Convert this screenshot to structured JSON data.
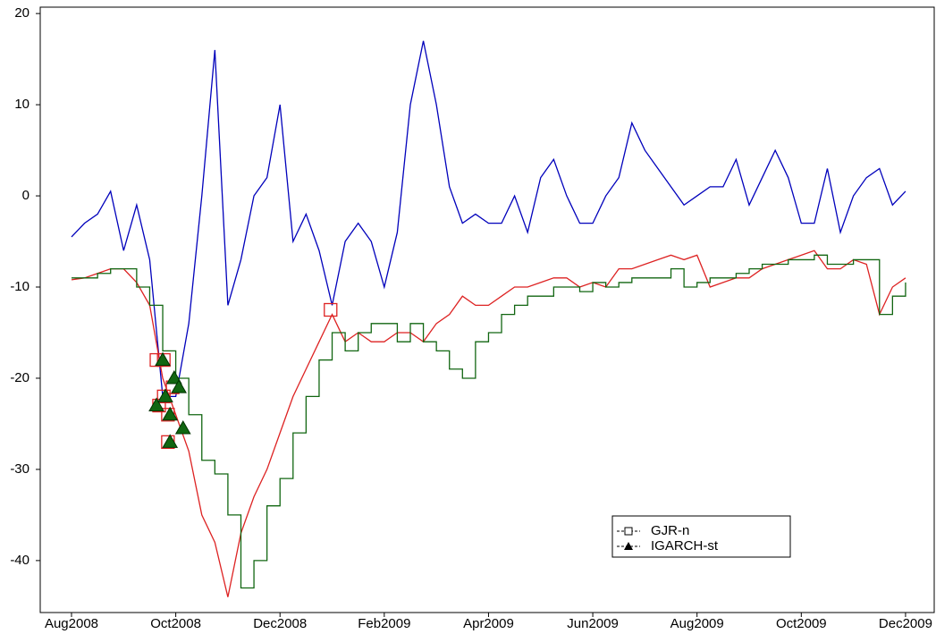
{
  "chart_data": {
    "type": "line",
    "x": [
      0,
      0.25,
      0.5,
      0.75,
      1,
      1.25,
      1.5,
      1.75,
      2,
      2.25,
      2.5,
      2.75,
      3,
      3.25,
      3.5,
      3.75,
      4,
      4.25,
      4.5,
      4.75,
      5,
      5.25,
      5.5,
      5.75,
      6,
      6.25,
      6.5,
      6.75,
      7,
      7.25,
      7.5,
      7.75,
      8,
      8.25,
      8.5,
      8.75,
      9,
      9.25,
      9.5,
      9.75,
      10,
      10.25,
      10.5,
      10.75,
      11,
      11.25,
      11.5,
      11.75,
      12,
      12.25,
      12.5,
      12.75,
      13,
      13.25,
      13.5,
      13.75,
      14,
      14.25,
      14.5,
      14.75,
      15,
      15.25,
      15.5,
      15.75,
      16
    ],
    "series": [
      {
        "color": "#0000bb",
        "values": [
          -4.5,
          -3,
          -2,
          0.5,
          -6,
          -1,
          -7,
          -22,
          -22,
          -14,
          0,
          16,
          -12,
          -7,
          0,
          2,
          10,
          -5,
          -2,
          -6,
          -12,
          -5,
          -3,
          -5,
          -10,
          -4,
          10,
          17,
          10,
          1,
          -3,
          -2,
          -3,
          -3,
          0,
          -4,
          2,
          4,
          0,
          -3,
          -3,
          0,
          2,
          8,
          5,
          3,
          1,
          -1,
          0,
          1,
          1,
          4,
          -1,
          2,
          5,
          2,
          -3,
          -3,
          3,
          -4,
          0,
          2,
          3,
          -1,
          0.5
        ]
      },
      {
        "color": "#dd2222",
        "values": [
          -9.2,
          -9,
          -8.5,
          -8,
          -8,
          -9.5,
          -12,
          -20,
          -24,
          -28,
          -35,
          -38,
          -44,
          -37,
          -33,
          -30,
          -26,
          -22,
          -19,
          -16,
          -13,
          -16,
          -15,
          -16,
          -16,
          -15,
          -15,
          -16,
          -14,
          -13,
          -11,
          -12,
          -12,
          -11,
          -10,
          -10,
          -9.5,
          -9,
          -9,
          -10,
          -9.5,
          -10,
          -8,
          -8,
          -7.5,
          -7,
          -6.5,
          -7,
          -6.5,
          -10,
          -9.5,
          -9,
          -9,
          -8,
          -7.5,
          -7,
          -6.5,
          -6,
          -8,
          -8,
          -7,
          -7.5,
          -13,
          -10,
          -9
        ]
      },
      {
        "color": "#116611",
        "step": true,
        "values": [
          -9,
          -9,
          -8.5,
          -8,
          -8,
          -10,
          -12,
          -17,
          -20,
          -24,
          -29,
          -30.5,
          -35,
          -43,
          -40,
          -34,
          -31,
          -26,
          -22,
          -18,
          -15,
          -17,
          -15,
          -14,
          -14,
          -16,
          -14,
          -16,
          -17,
          -19,
          -20,
          -16,
          -15,
          -13,
          -12,
          -11,
          -11,
          -10,
          -10,
          -10.5,
          -9.5,
          -10,
          -9.5,
          -9,
          -9,
          -9,
          -8,
          -10,
          -9.5,
          -9,
          -9,
          -8.5,
          -8,
          -7.5,
          -7.5,
          -7,
          -7,
          -6.5,
          -7.5,
          -7.5,
          -7,
          -7,
          -13,
          -11,
          -9.5
        ]
      }
    ],
    "markers": [
      {
        "name": "GJR-n",
        "shape": "square",
        "color": "#dd2222",
        "x": [
          1.63,
          1.68,
          1.77,
          1.85,
          1.85,
          1.94,
          1.77,
          4.97
        ],
        "values": [
          -18,
          -23,
          -22,
          -24,
          -27,
          -21,
          -18,
          -12.5
        ]
      },
      {
        "name": "IGARCH-st",
        "shape": "triangle",
        "color": "#116611",
        "x": [
          1.63,
          1.75,
          1.8,
          1.89,
          1.89,
          1.97,
          2.06,
          2.14
        ],
        "values": [
          -23,
          -18,
          -22,
          -24,
          -27,
          -20,
          -21,
          -25.5
        ]
      }
    ],
    "xlim": [
      -0.6,
      16.55
    ],
    "xticks": [
      {
        "value": 0,
        "label": "Aug2008"
      },
      {
        "value": 2,
        "label": "Oct2008"
      },
      {
        "value": 4,
        "label": "Dec2008"
      },
      {
        "value": 6,
        "label": "Feb2009"
      },
      {
        "value": 8,
        "label": "Apr2009"
      },
      {
        "value": 10,
        "label": "Jun2009"
      },
      {
        "value": 12,
        "label": "Aug2009"
      },
      {
        "value": 14,
        "label": "Oct2009"
      },
      {
        "value": 16,
        "label": "Dec2009"
      }
    ],
    "ylim": [
      -45.7,
      20.7
    ],
    "yticks": [
      20,
      10,
      0,
      -10,
      -20,
      -30,
      -40
    ]
  }
}
